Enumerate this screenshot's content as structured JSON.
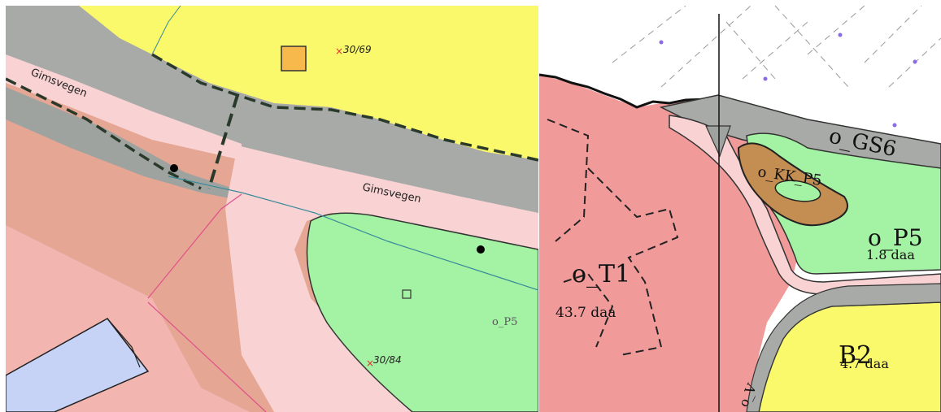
{
  "left_map": {
    "road_labels": [
      "Gimsvegen",
      "Gimsvegen"
    ],
    "property_labels": [
      "30/69",
      "30/84"
    ],
    "zone_label": "o_P5"
  },
  "right_map": {
    "zones": [
      {
        "code": "o_T1",
        "area": "43.7 daa"
      },
      {
        "code": "o_P5",
        "area": "1.8 daa"
      },
      {
        "code": "B2",
        "area": "4.7 daa"
      }
    ],
    "other_labels": [
      "o_GS6",
      "o_KK_P5",
      "o_V"
    ]
  },
  "colors": {
    "road_grey": "#a8aaa8",
    "road_pink": "#f9d3d3",
    "yellow_zone": "#f9f96b",
    "green_zone": "#a4f2a4",
    "salmon_zone": "#f19a9a",
    "building_blue": "#c7d3f6",
    "brown_zone": "#c48d52"
  }
}
